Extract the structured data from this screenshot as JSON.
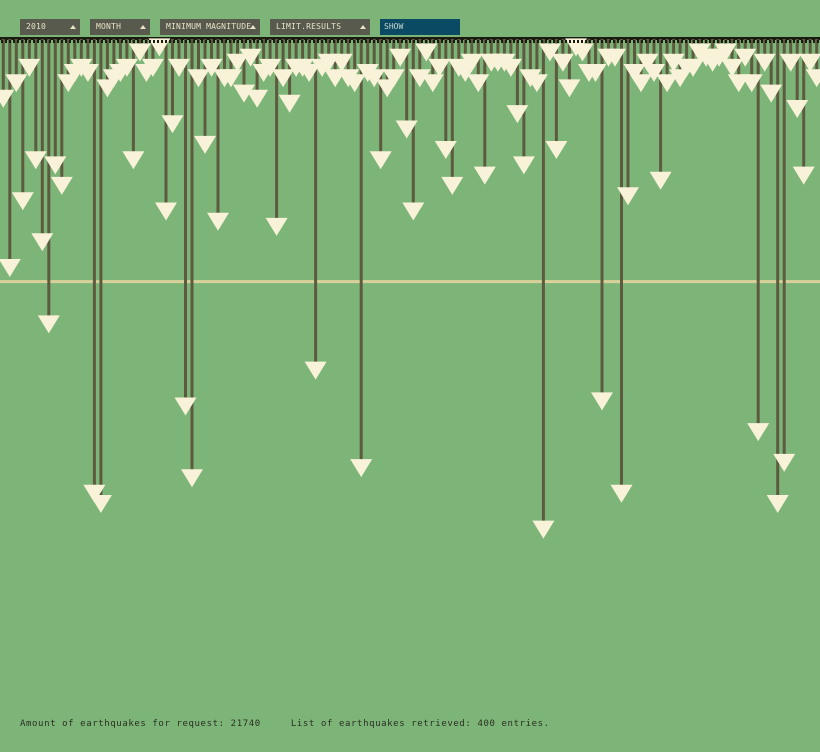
{
  "toolbar": {
    "year": "2010",
    "period": "MONTH",
    "magnitude": "MINIMUM MAGNITUDE",
    "limit": "LIMIT.RESULTS",
    "show_label": "SHOW"
  },
  "colors": {
    "background": "#7db578",
    "stem": "#5e5a40",
    "marker": "#f8f2d8",
    "baseline": "#1a1c12",
    "reference_line": "#d8d29a",
    "select_bg": "#585a4e",
    "show_bg": "#0b4a63"
  },
  "footer": {
    "count_label": "Amount of earthquakes for request:",
    "count_value": "21740",
    "list_label": "List of earthquakes retrieved:",
    "list_value": "400 entries."
  },
  "chart_data": {
    "type": "bar",
    "title": "",
    "xlabel": "",
    "ylabel": "",
    "orientation": "downward-stems",
    "reference_line": 0.47,
    "ylim": [
      0,
      1
    ],
    "values": [
      0.13,
      0.46,
      0.1,
      0.33,
      0.07,
      0.25,
      0.41,
      0.57,
      0.26,
      0.3,
      0.1,
      0.08,
      0.07,
      0.08,
      0.9,
      0.92,
      0.11,
      0.09,
      0.08,
      0.07,
      0.25,
      0.04,
      0.08,
      0.07,
      0.03,
      0.35,
      0.18,
      0.07,
      0.73,
      0.87,
      0.09,
      0.22,
      0.07,
      0.37,
      0.09,
      0.09,
      0.06,
      0.12,
      0.05,
      0.13,
      0.08,
      0.07,
      0.38,
      0.09,
      0.14,
      0.07,
      0.07,
      0.08,
      0.66,
      0.07,
      0.06,
      0.09,
      0.06,
      0.09,
      0.1,
      0.85,
      0.08,
      0.09,
      0.25,
      0.11,
      0.09,
      0.05,
      0.19,
      0.35,
      0.09,
      0.04,
      0.1,
      0.07,
      0.23,
      0.3,
      0.07,
      0.08,
      0.06,
      0.1,
      0.28,
      0.06,
      0.06,
      0.06,
      0.07,
      0.16,
      0.26,
      0.09,
      0.1,
      0.97,
      0.04,
      0.23,
      0.06,
      0.11,
      0.03,
      0.04,
      0.08,
      0.08,
      0.72,
      0.05,
      0.05,
      0.9,
      0.32,
      0.08,
      0.1,
      0.06,
      0.08,
      0.29,
      0.1,
      0.06,
      0.09,
      0.07,
      0.07,
      0.04,
      0.05,
      0.06,
      0.05,
      0.04,
      0.07,
      0.1,
      0.05,
      0.1,
      0.78,
      0.06,
      0.12,
      0.92,
      0.84,
      0.06,
      0.15,
      0.28,
      0.06,
      0.09
    ]
  }
}
